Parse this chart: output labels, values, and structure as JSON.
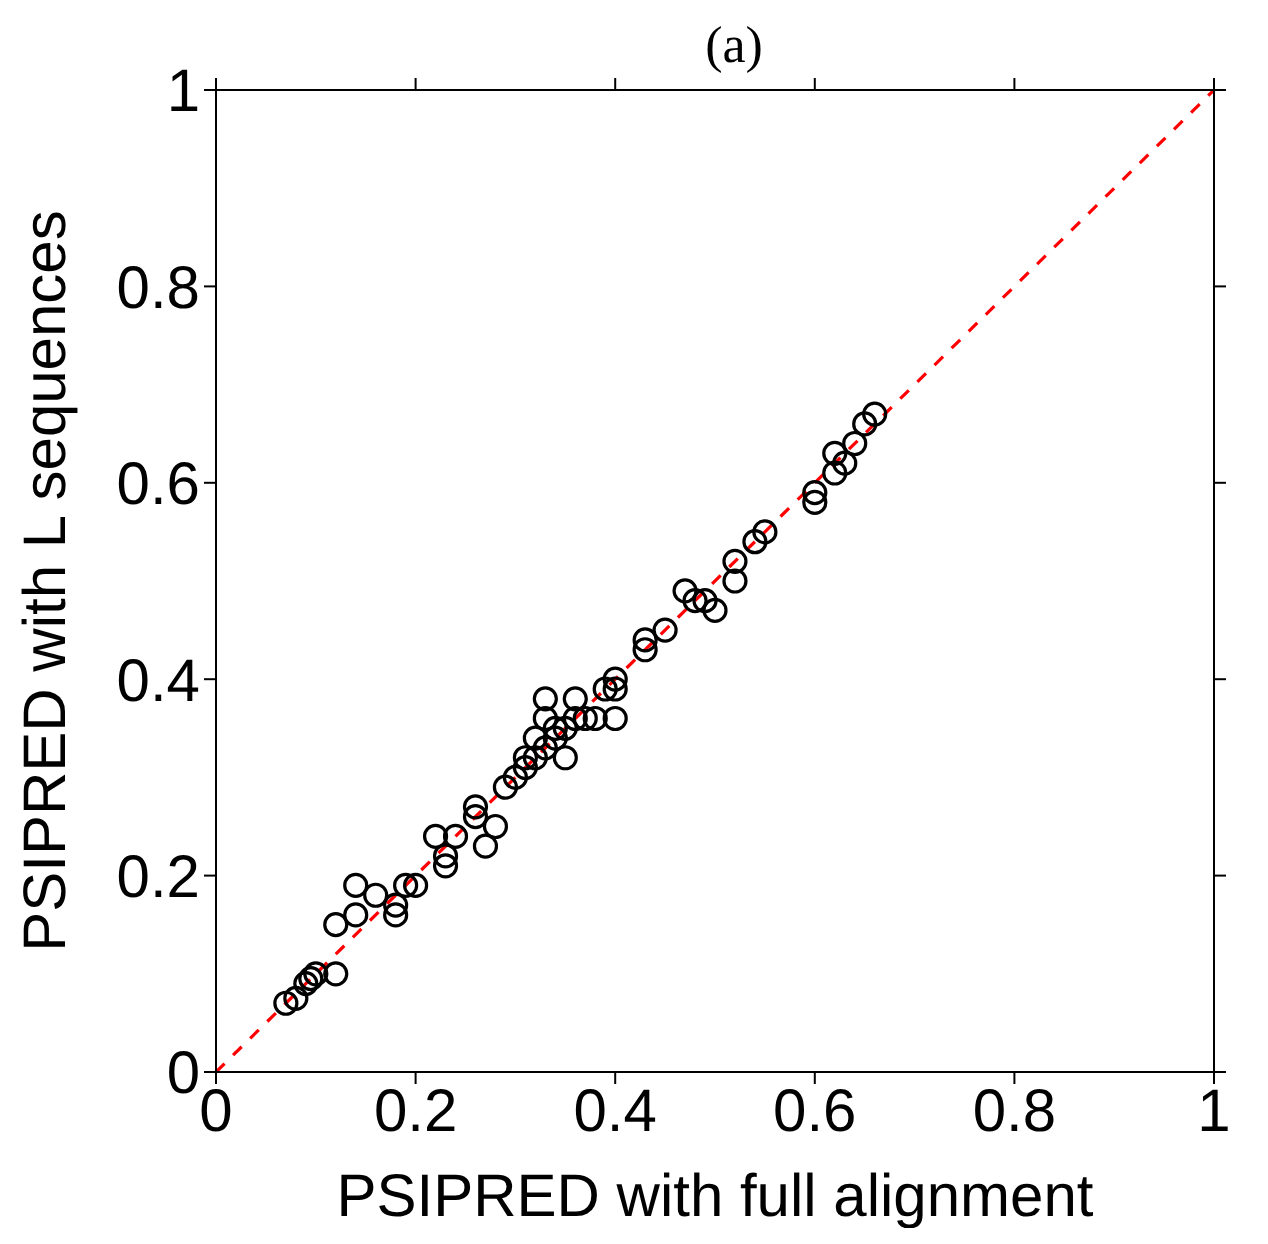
{
  "chart_data": {
    "type": "scatter",
    "title": "(a)",
    "xlabel": "PSIPRED with full alignment",
    "ylabel": "PSIPRED with L sequences",
    "xlim": [
      0,
      1
    ],
    "ylim": [
      0,
      1
    ],
    "xticks": [
      0,
      0.2,
      0.4,
      0.6,
      0.8,
      1
    ],
    "yticks": [
      0,
      0.2,
      0.4,
      0.6,
      0.8,
      1
    ],
    "grid": false,
    "legend": false,
    "series": [
      {
        "marker": "circle",
        "color": "#000000",
        "x": [
          0.07,
          0.08,
          0.09,
          0.095,
          0.1,
          0.12,
          0.12,
          0.14,
          0.14,
          0.16,
          0.18,
          0.18,
          0.19,
          0.2,
          0.22,
          0.23,
          0.23,
          0.24,
          0.26,
          0.26,
          0.27,
          0.28,
          0.29,
          0.3,
          0.31,
          0.31,
          0.32,
          0.32,
          0.33,
          0.33,
          0.33,
          0.34,
          0.34,
          0.35,
          0.35,
          0.36,
          0.36,
          0.37,
          0.38,
          0.39,
          0.4,
          0.4,
          0.4,
          0.43,
          0.43,
          0.45,
          0.47,
          0.48,
          0.49,
          0.5,
          0.52,
          0.52,
          0.54,
          0.55,
          0.6,
          0.6,
          0.62,
          0.62,
          0.63,
          0.64,
          0.65,
          0.66
        ],
        "values": [
          0.07,
          0.075,
          0.09,
          0.095,
          0.1,
          0.1,
          0.15,
          0.19,
          0.16,
          0.18,
          0.17,
          0.16,
          0.19,
          0.19,
          0.24,
          0.21,
          0.22,
          0.24,
          0.26,
          0.27,
          0.23,
          0.25,
          0.29,
          0.3,
          0.31,
          0.32,
          0.32,
          0.34,
          0.36,
          0.38,
          0.33,
          0.35,
          0.34,
          0.35,
          0.32,
          0.38,
          0.36,
          0.36,
          0.36,
          0.39,
          0.4,
          0.39,
          0.36,
          0.44,
          0.43,
          0.45,
          0.49,
          0.48,
          0.48,
          0.47,
          0.5,
          0.52,
          0.54,
          0.55,
          0.58,
          0.59,
          0.61,
          0.63,
          0.62,
          0.64,
          0.66,
          0.67
        ]
      },
      {
        "type": "line",
        "marker": "none",
        "color": "#ff0000",
        "line_style": "dashed",
        "x": [
          0,
          1
        ],
        "values": [
          0,
          1
        ]
      }
    ]
  }
}
